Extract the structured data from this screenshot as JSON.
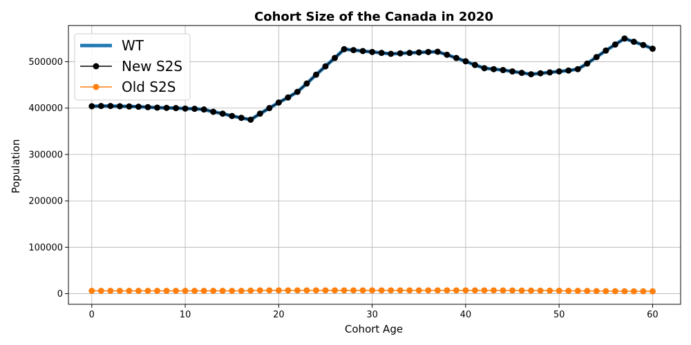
{
  "chart_data": {
    "type": "line",
    "title": "Cohort Size of the Canada in 2020",
    "xlabel": "Cohort Age",
    "ylabel": "Population",
    "xlim": [
      -2.5,
      63
    ],
    "ylim": [
      -23000,
      578000
    ],
    "xticks": [
      0,
      10,
      20,
      30,
      40,
      50,
      60
    ],
    "yticks": [
      0,
      100000,
      200000,
      300000,
      400000,
      500000
    ],
    "xtick_labels": [
      "0",
      "10",
      "20",
      "30",
      "40",
      "50",
      "60"
    ],
    "ytick_labels": [
      "0",
      "100000",
      "200000",
      "300000",
      "400000",
      "500000"
    ],
    "grid": true,
    "legend_position": "top-left",
    "x": [
      0,
      1,
      2,
      3,
      4,
      5,
      6,
      7,
      8,
      9,
      10,
      11,
      12,
      13,
      14,
      15,
      16,
      17,
      18,
      19,
      20,
      21,
      22,
      23,
      24,
      25,
      26,
      27,
      28,
      29,
      30,
      31,
      32,
      33,
      34,
      35,
      36,
      37,
      38,
      39,
      40,
      41,
      42,
      43,
      44,
      45,
      46,
      47,
      48,
      49,
      50,
      51,
      52,
      53,
      54,
      55,
      56,
      57,
      58,
      59,
      60
    ],
    "series": [
      {
        "name": "WT",
        "color": "#1f77b4",
        "style": "thick-line",
        "values": [
          404000,
          404500,
          404500,
          404000,
          403500,
          403000,
          402000,
          401000,
          400500,
          400000,
          399000,
          398500,
          397000,
          392000,
          388000,
          383000,
          379000,
          375000,
          388000,
          400000,
          412000,
          423000,
          435000,
          453000,
          472000,
          490000,
          508000,
          527000,
          525000,
          523000,
          521000,
          519000,
          517000,
          518000,
          519000,
          520000,
          521000,
          521500,
          515000,
          508000,
          501000,
          493000,
          486000,
          484000,
          482000,
          479000,
          476000,
          473000,
          475000,
          477000,
          479000,
          481000,
          484000,
          496000,
          510000,
          524000,
          537000,
          550000,
          543000,
          536000,
          528000
        ]
      },
      {
        "name": "New S2S",
        "color": "#000000",
        "style": "line-marker",
        "values": [
          404000,
          404500,
          404500,
          404000,
          403500,
          403000,
          402000,
          401000,
          400500,
          400000,
          399000,
          398500,
          397000,
          392000,
          388000,
          383000,
          379000,
          375000,
          388000,
          400000,
          412000,
          423000,
          435000,
          453000,
          472000,
          490000,
          508000,
          527000,
          525000,
          523000,
          521000,
          519000,
          517000,
          518000,
          519000,
          520000,
          521000,
          521500,
          515000,
          508000,
          501000,
          493000,
          486000,
          484000,
          482000,
          479000,
          476000,
          473000,
          475000,
          477000,
          479000,
          481000,
          484000,
          496000,
          510000,
          524000,
          537000,
          550000,
          543000,
          536000,
          528000
        ]
      },
      {
        "name": "Old S2S",
        "color": "#ff7f0e",
        "style": "line-marker",
        "values": [
          6000,
          6000,
          6000,
          6000,
          6000,
          6000,
          6000,
          6000,
          6000,
          6000,
          6000,
          6000,
          6000,
          6000,
          6000,
          6000,
          6000,
          6500,
          7000,
          7000,
          7000,
          7000,
          7000,
          7000,
          7000,
          7000,
          7000,
          7000,
          7000,
          7000,
          7000,
          7000,
          7000,
          7000,
          7000,
          7000,
          7000,
          7000,
          7000,
          7000,
          7000,
          7000,
          7000,
          7000,
          6800,
          6800,
          6500,
          6500,
          6300,
          6300,
          6200,
          6000,
          6000,
          5800,
          5500,
          5300,
          5200,
          5100,
          5000,
          5000,
          5000
        ]
      }
    ]
  }
}
